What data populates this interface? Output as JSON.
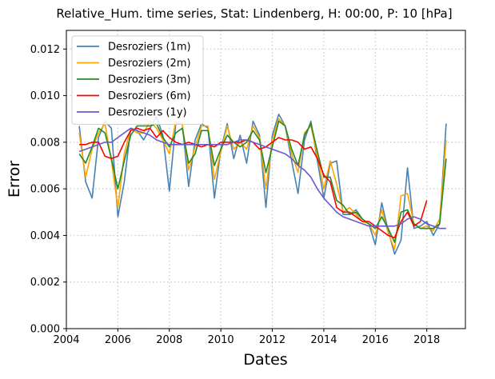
{
  "chart_data": {
    "type": "line",
    "title": "Relative_Hum. time series, Stat: Lindenberg, H: 00:00, P: 10 [hPa]",
    "xlabel": "Dates",
    "ylabel": "Error",
    "xlim": [
      2004.0,
      2019.5
    ],
    "ylim": [
      0.0,
      0.0128
    ],
    "x_ticks": [
      2004,
      2006,
      2008,
      2010,
      2012,
      2014,
      2016,
      2018
    ],
    "x_tick_labels": [
      "2004",
      "2006",
      "2008",
      "2010",
      "2012",
      "2014",
      "2016",
      "2018"
    ],
    "y_ticks": [
      0.0,
      0.002,
      0.004,
      0.006,
      0.008,
      0.01,
      0.012
    ],
    "y_tick_labels": [
      "0.000",
      "0.002",
      "0.004",
      "0.006",
      "0.008",
      "0.010",
      "0.012"
    ],
    "grid": true,
    "legend_position": "top-left",
    "series": [
      {
        "name": "Desroziers (1m)",
        "color": "#4682b4",
        "x": [
          2004.5,
          2004.75,
          2005.0,
          2005.25,
          2005.5,
          2005.75,
          2006.0,
          2006.25,
          2006.5,
          2006.75,
          2007.0,
          2007.25,
          2007.5,
          2007.75,
          2008.0,
          2008.25,
          2008.5,
          2008.75,
          2009.0,
          2009.25,
          2009.5,
          2009.75,
          2010.0,
          2010.25,
          2010.5,
          2010.75,
          2011.0,
          2011.25,
          2011.5,
          2011.75,
          2012.0,
          2012.25,
          2012.5,
          2012.75,
          2013.0,
          2013.25,
          2013.5,
          2013.75,
          2014.0,
          2014.25,
          2014.5,
          2014.75,
          2015.0,
          2015.25,
          2015.5,
          2015.75,
          2016.0,
          2016.25,
          2016.5,
          2016.75,
          2017.0,
          2017.25,
          2017.5,
          2017.75,
          2018.0,
          2018.25,
          2018.5,
          2018.75
        ],
        "y": [
          0.0087,
          0.0063,
          0.0056,
          0.0082,
          0.0089,
          0.0086,
          0.0048,
          0.0063,
          0.0086,
          0.0085,
          0.0081,
          0.0086,
          0.0091,
          0.0083,
          0.0059,
          0.0088,
          0.0088,
          0.0061,
          0.0081,
          0.0088,
          0.0086,
          0.0056,
          0.0077,
          0.0088,
          0.0073,
          0.0083,
          0.0071,
          0.0089,
          0.0083,
          0.0052,
          0.0083,
          0.0092,
          0.0087,
          0.0072,
          0.0058,
          0.0081,
          0.0089,
          0.0072,
          0.0056,
          0.0071,
          0.0072,
          0.0049,
          0.0049,
          0.0051,
          0.0047,
          0.0045,
          0.0036,
          0.0054,
          0.0042,
          0.0032,
          0.0038,
          0.0069,
          0.0043,
          0.0044,
          0.0046,
          0.004,
          0.0045,
          0.0088
        ]
      },
      {
        "name": "Desroziers (2m)",
        "color": "#ffa500",
        "x": [
          2004.5,
          2004.75,
          2005.0,
          2005.25,
          2005.5,
          2005.75,
          2006.0,
          2006.25,
          2006.5,
          2006.75,
          2007.0,
          2007.25,
          2007.5,
          2007.75,
          2008.0,
          2008.25,
          2008.5,
          2008.75,
          2009.0,
          2009.25,
          2009.5,
          2009.75,
          2010.0,
          2010.25,
          2010.5,
          2010.75,
          2011.0,
          2011.25,
          2011.5,
          2011.75,
          2012.0,
          2012.25,
          2012.5,
          2012.75,
          2013.0,
          2013.25,
          2013.5,
          2013.75,
          2014.0,
          2014.25,
          2014.5,
          2014.75,
          2015.0,
          2015.25,
          2015.5,
          2015.75,
          2016.0,
          2016.25,
          2016.5,
          2016.75,
          2017.0,
          2017.25,
          2017.5,
          2017.75,
          2018.0,
          2018.25,
          2018.5,
          2018.75
        ],
        "y": [
          0.0084,
          0.0065,
          0.0077,
          0.0084,
          0.0088,
          0.0072,
          0.0052,
          0.0075,
          0.0086,
          0.0084,
          0.0084,
          0.0089,
          0.0086,
          0.0081,
          0.0075,
          0.0089,
          0.0088,
          0.0068,
          0.0078,
          0.0087,
          0.0087,
          0.0064,
          0.0076,
          0.0087,
          0.0077,
          0.008,
          0.0077,
          0.0087,
          0.0082,
          0.006,
          0.0081,
          0.009,
          0.0087,
          0.0075,
          0.0067,
          0.0084,
          0.0087,
          0.0074,
          0.006,
          0.0072,
          0.0062,
          0.005,
          0.0052,
          0.0049,
          0.0046,
          0.0045,
          0.004,
          0.0051,
          0.0041,
          0.0034,
          0.0057,
          0.0058,
          0.0045,
          0.0043,
          0.0044,
          0.0042,
          0.0047,
          0.0081
        ]
      },
      {
        "name": "Desroziers (3m)",
        "color": "#228b22",
        "x": [
          2004.5,
          2004.75,
          2005.0,
          2005.25,
          2005.5,
          2005.75,
          2006.0,
          2006.25,
          2006.5,
          2006.75,
          2007.0,
          2007.25,
          2007.5,
          2007.75,
          2008.0,
          2008.25,
          2008.5,
          2008.75,
          2009.0,
          2009.25,
          2009.5,
          2009.75,
          2010.0,
          2010.25,
          2010.5,
          2010.75,
          2011.0,
          2011.25,
          2011.5,
          2011.75,
          2012.0,
          2012.25,
          2012.5,
          2012.75,
          2013.0,
          2013.25,
          2013.5,
          2013.75,
          2014.0,
          2014.25,
          2014.5,
          2014.75,
          2015.0,
          2015.25,
          2015.5,
          2015.75,
          2016.0,
          2016.25,
          2016.5,
          2016.75,
          2017.0,
          2017.25,
          2017.5,
          2017.75,
          2018.0,
          2018.25,
          2018.5,
          2018.75
        ],
        "y": [
          0.0075,
          0.0071,
          0.0078,
          0.0086,
          0.0084,
          0.0073,
          0.006,
          0.0072,
          0.0083,
          0.0087,
          0.0087,
          0.0087,
          0.0088,
          0.0082,
          0.0078,
          0.0084,
          0.0086,
          0.0071,
          0.0075,
          0.0085,
          0.0085,
          0.007,
          0.0077,
          0.0083,
          0.008,
          0.0078,
          0.008,
          0.0085,
          0.0081,
          0.0067,
          0.0078,
          0.0089,
          0.0087,
          0.0077,
          0.007,
          0.0083,
          0.0088,
          0.0076,
          0.0065,
          0.0065,
          0.0055,
          0.0053,
          0.0049,
          0.005,
          0.0047,
          0.0045,
          0.0043,
          0.0048,
          0.0043,
          0.0037,
          0.005,
          0.0051,
          0.0045,
          0.0043,
          0.0043,
          0.0043,
          0.0045,
          0.0073
        ]
      },
      {
        "name": "Desroziers (6m)",
        "color": "#ff0000",
        "x": [
          2004.5,
          2004.75,
          2005.0,
          2005.25,
          2005.5,
          2005.75,
          2006.0,
          2006.25,
          2006.5,
          2006.75,
          2007.0,
          2007.25,
          2007.5,
          2007.75,
          2008.0,
          2008.25,
          2008.5,
          2008.75,
          2009.0,
          2009.25,
          2009.5,
          2009.75,
          2010.0,
          2010.25,
          2010.5,
          2010.75,
          2011.0,
          2011.25,
          2011.5,
          2011.75,
          2012.0,
          2012.25,
          2012.5,
          2012.75,
          2013.0,
          2013.25,
          2013.5,
          2013.75,
          2014.0,
          2014.25,
          2014.5,
          2014.75,
          2015.0,
          2015.25,
          2015.5,
          2015.75,
          2016.0,
          2016.25,
          2016.5,
          2016.75,
          2017.0,
          2017.25,
          2017.5,
          2017.75,
          2018.0
        ],
        "y": [
          0.0079,
          0.0079,
          0.008,
          0.008,
          0.0074,
          0.0073,
          0.0074,
          0.008,
          0.0085,
          0.0086,
          0.0085,
          0.0086,
          0.0082,
          0.0085,
          0.0082,
          0.008,
          0.0079,
          0.008,
          0.0079,
          0.0078,
          0.0079,
          0.0078,
          0.008,
          0.008,
          0.008,
          0.008,
          0.0081,
          0.008,
          0.0077,
          0.0078,
          0.008,
          0.0082,
          0.0081,
          0.0081,
          0.008,
          0.0077,
          0.0078,
          0.0073,
          0.0066,
          0.0063,
          0.0052,
          0.005,
          0.005,
          0.0048,
          0.0046,
          0.0046,
          0.0044,
          0.0042,
          0.004,
          0.0039,
          0.0046,
          0.005,
          0.0044,
          0.0046,
          0.0055
        ]
      },
      {
        "name": "Desroziers (1y)",
        "color": "#6a5acd",
        "x": [
          2004.5,
          2004.75,
          2005.0,
          2005.25,
          2005.5,
          2005.75,
          2006.0,
          2006.25,
          2006.5,
          2006.75,
          2007.0,
          2007.25,
          2007.5,
          2007.75,
          2008.0,
          2008.25,
          2008.5,
          2008.75,
          2009.0,
          2009.25,
          2009.5,
          2009.75,
          2010.0,
          2010.25,
          2010.5,
          2010.75,
          2011.0,
          2011.25,
          2011.5,
          2011.75,
          2012.0,
          2012.25,
          2012.5,
          2012.75,
          2013.0,
          2013.25,
          2013.5,
          2013.75,
          2014.0,
          2014.25,
          2014.5,
          2014.75,
          2015.0,
          2015.25,
          2015.5,
          2015.75,
          2016.0,
          2016.25,
          2016.5,
          2016.75,
          2017.0,
          2017.25,
          2017.5,
          2017.75,
          2018.0,
          2018.25,
          2018.5,
          2018.75
        ],
        "y": [
          0.0076,
          0.0077,
          0.0078,
          0.0079,
          0.008,
          0.008,
          0.0082,
          0.0084,
          0.0086,
          0.0085,
          0.0084,
          0.0083,
          0.0081,
          0.008,
          0.0079,
          0.0079,
          0.0079,
          0.0079,
          0.0079,
          0.0079,
          0.0079,
          0.0079,
          0.0079,
          0.0079,
          0.008,
          0.0081,
          0.0081,
          0.008,
          0.0079,
          0.0078,
          0.0077,
          0.0076,
          0.0075,
          0.0073,
          0.007,
          0.0068,
          0.0065,
          0.006,
          0.0056,
          0.0053,
          0.005,
          0.0048,
          0.0047,
          0.0046,
          0.0045,
          0.0044,
          0.0044,
          0.0044,
          0.0044,
          0.0044,
          0.0045,
          0.0047,
          0.0048,
          0.0047,
          0.0045,
          0.0044,
          0.0043,
          0.0043
        ]
      }
    ]
  }
}
